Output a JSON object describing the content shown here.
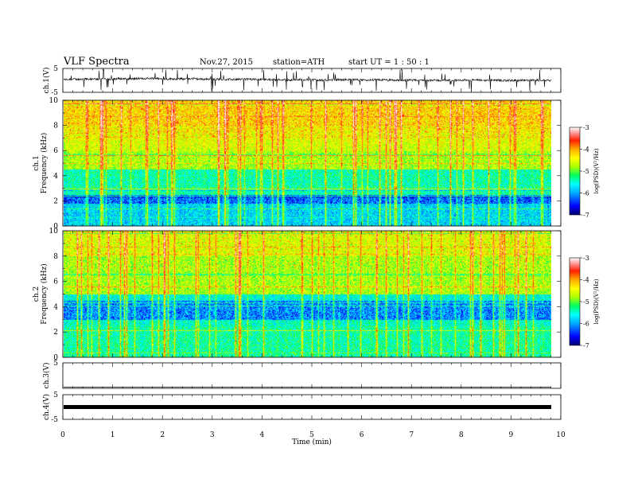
{
  "header": {
    "title": "VLF  Spectra",
    "date": "Nov.27, 2015",
    "station": "station=ATH",
    "start": "start  UT  =   1  : 50 : 1"
  },
  "chart_data": [
    {
      "type": "line",
      "panel": "ch1-waveform",
      "ylabel": "ch.1(V)",
      "ylim": [
        -5,
        5
      ],
      "yticks": [
        "5",
        "-5"
      ],
      "xlim": [
        0,
        10
      ],
      "series": [
        {
          "values_summary": "noisy signal near 0 V with many spikes"
        }
      ]
    },
    {
      "type": "heatmap",
      "panel": "ch1-spectrogram",
      "ylabel": "ch.1\nFrequency (kHz)",
      "ylim": [
        0,
        10
      ],
      "yticks": [
        "0",
        "2",
        "4",
        "6",
        "8",
        "10"
      ],
      "xlim": [
        0,
        9.8
      ],
      "colorbar": {
        "label": "log(PSD)(V²/Hz)",
        "range": [
          -7,
          -3
        ],
        "ticks": [
          "-3",
          "-4",
          "-5",
          "-6",
          "-7"
        ]
      }
    },
    {
      "type": "heatmap",
      "panel": "ch2-spectrogram",
      "ylabel": "ch.2\nFrequency (kHz)",
      "ylim": [
        0,
        10
      ],
      "yticks": [
        "0",
        "2",
        "4",
        "6",
        "8",
        "10"
      ],
      "xlim": [
        0,
        9.8
      ],
      "colorbar": {
        "label": "log(PSD)(V²/Hz)",
        "range": [
          -7,
          -3
        ],
        "ticks": [
          "-3",
          "-4",
          "-5",
          "-6",
          "-7"
        ]
      }
    },
    {
      "type": "line",
      "panel": "ch3-waveform",
      "ylabel": "ch.3(V)",
      "ylim": [
        -5,
        5
      ],
      "yticks": [
        "5"
      ],
      "series": [
        {
          "values_summary": "flat line near -4.8 V"
        }
      ]
    },
    {
      "type": "line",
      "panel": "ch4-waveform",
      "ylabel": "ch.4(V)",
      "ylim": [
        -5,
        5
      ],
      "yticks": [
        "5",
        "-5"
      ],
      "series": [
        {
          "values_summary": "thick flat band near 0 V"
        }
      ]
    }
  ],
  "xaxis": {
    "label": "Time  (min)",
    "ticks": [
      "0",
      "1",
      "2",
      "3",
      "4",
      "5",
      "6",
      "7",
      "8",
      "9",
      "10"
    ],
    "range": [
      0,
      10
    ]
  },
  "colors": {
    "cmap": [
      "#000070",
      "#0000ff",
      "#00aaff",
      "#00ffff",
      "#00ff60",
      "#aaff00",
      "#ffff00",
      "#ffaa00",
      "#ff2000",
      "#ff9090",
      "#ffffff"
    ]
  }
}
